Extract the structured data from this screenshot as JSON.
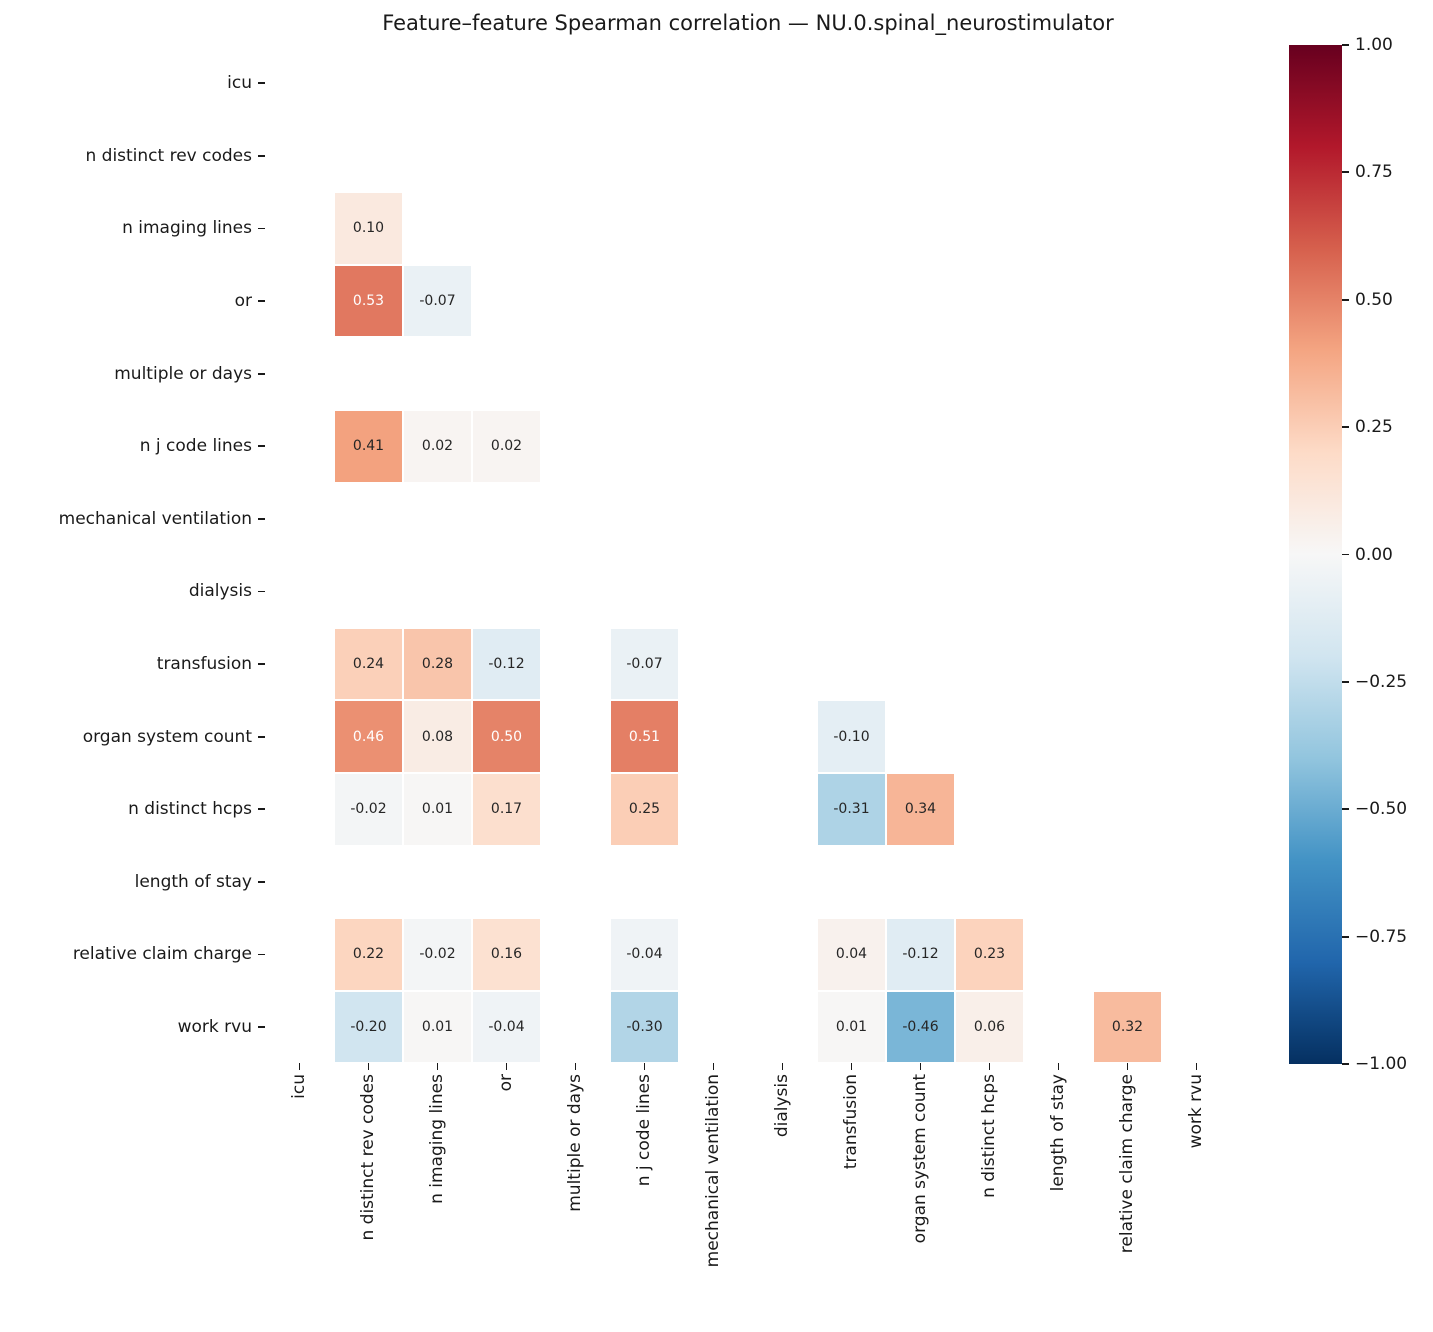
{
  "chart_data": {
    "type": "heatmap",
    "title": "Feature–feature Spearman correlation — NU.0.spinal_neurostimulator",
    "xlabel": "",
    "ylabel": "",
    "labels": [
      "icu",
      "n distinct rev codes",
      "n imaging lines",
      "or",
      "multiple or days",
      "n j code lines",
      "mechanical ventilation",
      "dialysis",
      "transfusion",
      "organ system count",
      "n distinct hcps",
      "length of stay",
      "relative claim charge",
      "work rvu"
    ],
    "matrix": [
      [
        null,
        null,
        null,
        null,
        null,
        null,
        null,
        null,
        null,
        null,
        null,
        null,
        null,
        null
      ],
      [
        null,
        null,
        null,
        null,
        null,
        null,
        null,
        null,
        null,
        null,
        null,
        null,
        null,
        null
      ],
      [
        null,
        0.1,
        null,
        null,
        null,
        null,
        null,
        null,
        null,
        null,
        null,
        null,
        null,
        null
      ],
      [
        null,
        0.53,
        -0.07,
        null,
        null,
        null,
        null,
        null,
        null,
        null,
        null,
        null,
        null,
        null
      ],
      [
        null,
        null,
        null,
        null,
        null,
        null,
        null,
        null,
        null,
        null,
        null,
        null,
        null,
        null
      ],
      [
        null,
        0.41,
        0.02,
        0.02,
        null,
        null,
        null,
        null,
        null,
        null,
        null,
        null,
        null,
        null
      ],
      [
        null,
        null,
        null,
        null,
        null,
        null,
        null,
        null,
        null,
        null,
        null,
        null,
        null,
        null
      ],
      [
        null,
        null,
        null,
        null,
        null,
        null,
        null,
        null,
        null,
        null,
        null,
        null,
        null,
        null
      ],
      [
        null,
        0.24,
        0.28,
        -0.12,
        null,
        -0.07,
        null,
        null,
        null,
        null,
        null,
        null,
        null,
        null
      ],
      [
        null,
        0.46,
        0.08,
        0.5,
        null,
        0.51,
        null,
        null,
        -0.1,
        null,
        null,
        null,
        null,
        null
      ],
      [
        null,
        -0.02,
        0.01,
        0.17,
        null,
        0.25,
        null,
        null,
        -0.31,
        0.34,
        null,
        null,
        null,
        null
      ],
      [
        null,
        null,
        null,
        null,
        null,
        null,
        null,
        null,
        null,
        null,
        null,
        null,
        null,
        null
      ],
      [
        null,
        0.22,
        -0.02,
        0.16,
        null,
        -0.04,
        null,
        null,
        0.04,
        -0.12,
        0.23,
        null,
        null,
        null
      ],
      [
        null,
        -0.2,
        0.01,
        -0.04,
        null,
        -0.3,
        null,
        null,
        0.01,
        -0.46,
        0.06,
        null,
        0.32,
        null
      ]
    ],
    "vmin": -1,
    "vmax": 1,
    "colormap": "RdBu_r",
    "colormap_anchors_low_to_high": [
      "#053061",
      "#2166ac",
      "#4393c5",
      "#92c5de",
      "#d1e5f0",
      "#f7f7f7",
      "#fddbc7",
      "#f4a582",
      "#d6604d",
      "#b2182b",
      "#67001f"
    ],
    "annotation_decimals": 2,
    "annotation_text_dark": "#262626",
    "annotation_text_light": "#ffffff",
    "grid": "off",
    "triangle": "lower",
    "colorbar": {
      "position": "right",
      "ticks": [
        {
          "label": "1.00",
          "value": 1.0
        },
        {
          "label": "0.75",
          "value": 0.75
        },
        {
          "label": "0.50",
          "value": 0.5
        },
        {
          "label": "0.25",
          "value": 0.25
        },
        {
          "label": "0.00",
          "value": 0.0
        },
        {
          "label": "−0.25",
          "value": -0.25
        },
        {
          "label": "−0.50",
          "value": -0.5
        },
        {
          "label": "−0.75",
          "value": -0.75
        },
        {
          "label": "−1.00",
          "value": -1.0
        }
      ]
    }
  }
}
